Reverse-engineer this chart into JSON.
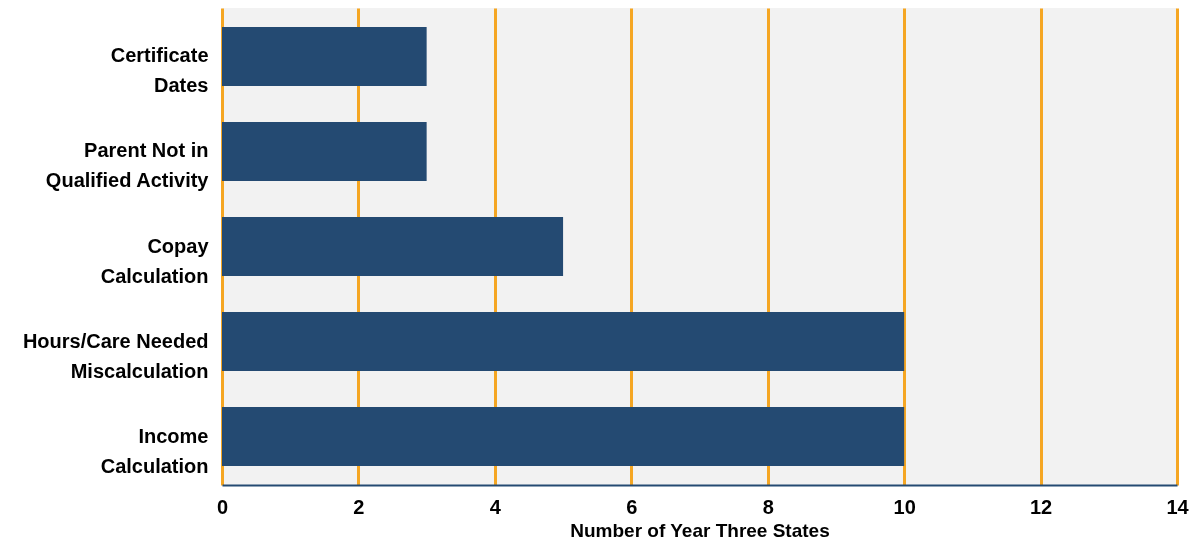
{
  "chart_data": {
    "type": "bar",
    "orientation": "horizontal",
    "xlabel": "Number of Year Three States",
    "categories": [
      "Certificate\nDates",
      "Parent Not in\nQualified Activity",
      "Copay\nCalculation",
      "Hours/Care Needed\nMiscalculation",
      "Income\nCalculation"
    ],
    "values": [
      3,
      3,
      5,
      10,
      10
    ],
    "color": "#244a72",
    "xlim": [
      0,
      14
    ],
    "xticks": [
      0,
      2,
      4,
      6,
      8,
      10,
      12,
      14
    ],
    "grid": "x"
  }
}
